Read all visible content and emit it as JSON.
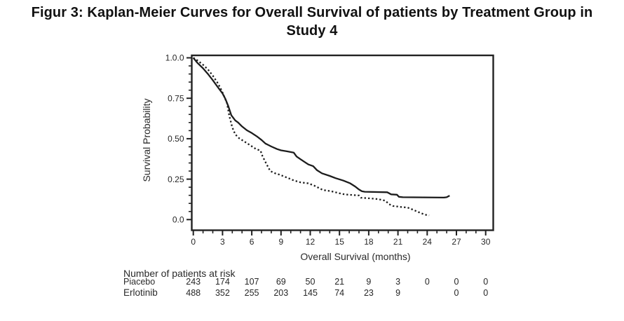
{
  "figure": {
    "title_line1": "Figur 3: Kaplan-Meier Curves for Overall Survival of patients by Treatment Group in",
    "title_line2": "Study 4"
  },
  "chart_data": {
    "type": "line",
    "subtype": "kaplan-meier-survival",
    "title": "Kaplan-Meier Curves for Overall Survival of patients by Treatment Group in Study 4",
    "xlabel": "Overall Survival (months)",
    "ylabel": "Survival Probability",
    "xlim": [
      0,
      31
    ],
    "ylim": [
      0,
      1.0
    ],
    "grid": false,
    "legend_position": "none",
    "x_ticks": {
      "values": [
        0,
        3,
        6,
        9,
        12,
        15,
        18,
        21,
        24,
        27,
        30
      ],
      "labels": [
        "0",
        "3",
        "6",
        "9",
        "12",
        "15",
        "18",
        "21",
        "24",
        "27",
        "30"
      ],
      "minor_step": 1
    },
    "y_ticks": {
      "values": [
        1.0,
        0.75,
        0.5,
        0.25,
        0.0
      ],
      "labels": [
        "1.0.0",
        "0.75",
        "0.50",
        "0.25",
        "0.0"
      ],
      "minor_step": 0.05
    },
    "series": [
      {
        "name": "Erlotinib",
        "line_style": "solid",
        "color": "#1c1c1c",
        "points": [
          [
            0,
            1.0
          ],
          [
            0.4,
            0.97
          ],
          [
            1,
            0.935
          ],
          [
            1.5,
            0.9
          ],
          [
            2,
            0.862
          ],
          [
            2.5,
            0.82
          ],
          [
            3,
            0.78
          ],
          [
            3.3,
            0.745
          ],
          [
            3.6,
            0.7
          ],
          [
            3.9,
            0.645
          ],
          [
            4.3,
            0.613
          ],
          [
            4.6,
            0.6
          ],
          [
            5,
            0.576
          ],
          [
            5.5,
            0.552
          ],
          [
            6,
            0.535
          ],
          [
            6.5,
            0.515
          ],
          [
            7,
            0.492
          ],
          [
            7.4,
            0.47
          ],
          [
            8,
            0.452
          ],
          [
            8.6,
            0.436
          ],
          [
            9,
            0.428
          ],
          [
            9.6,
            0.422
          ],
          [
            10.3,
            0.414
          ],
          [
            10.6,
            0.39
          ],
          [
            11,
            0.373
          ],
          [
            11.4,
            0.357
          ],
          [
            11.8,
            0.341
          ],
          [
            12.3,
            0.33
          ],
          [
            12.7,
            0.305
          ],
          [
            13.2,
            0.286
          ],
          [
            14,
            0.27
          ],
          [
            14.6,
            0.256
          ],
          [
            15.4,
            0.241
          ],
          [
            16.1,
            0.224
          ],
          [
            16.6,
            0.205
          ],
          [
            17,
            0.186
          ],
          [
            17.3,
            0.175
          ],
          [
            17.6,
            0.172
          ],
          [
            19.9,
            0.169
          ],
          [
            20.3,
            0.156
          ],
          [
            20.9,
            0.154
          ],
          [
            21.1,
            0.141
          ],
          [
            21.5,
            0.138
          ],
          [
            25.7,
            0.136
          ],
          [
            26.0,
            0.138
          ],
          [
            26.3,
            0.148
          ]
        ]
      },
      {
        "name": "Piacebo",
        "line_style": "dotted",
        "color": "#1c1c1c",
        "points": [
          [
            0,
            1.0
          ],
          [
            0.4,
            0.985
          ],
          [
            1,
            0.957
          ],
          [
            1.5,
            0.928
          ],
          [
            2,
            0.89
          ],
          [
            2.5,
            0.845
          ],
          [
            2.9,
            0.8
          ],
          [
            3.2,
            0.757
          ],
          [
            3.45,
            0.72
          ],
          [
            3.7,
            0.64
          ],
          [
            4.0,
            0.57
          ],
          [
            4.3,
            0.527
          ],
          [
            4.7,
            0.503
          ],
          [
            5.3,
            0.48
          ],
          [
            5.9,
            0.457
          ],
          [
            6.4,
            0.437
          ],
          [
            6.9,
            0.426
          ],
          [
            7.1,
            0.392
          ],
          [
            7.5,
            0.345
          ],
          [
            7.9,
            0.3
          ],
          [
            8.4,
            0.286
          ],
          [
            8.9,
            0.277
          ],
          [
            9.6,
            0.26
          ],
          [
            10.3,
            0.242
          ],
          [
            11,
            0.23
          ],
          [
            11.8,
            0.224
          ],
          [
            12.4,
            0.21
          ],
          [
            12.9,
            0.195
          ],
          [
            13.3,
            0.183
          ],
          [
            14.1,
            0.176
          ],
          [
            14.9,
            0.164
          ],
          [
            15.5,
            0.156
          ],
          [
            16.3,
            0.152
          ],
          [
            17,
            0.149
          ],
          [
            17.2,
            0.135
          ],
          [
            18.2,
            0.131
          ],
          [
            19,
            0.126
          ],
          [
            19.7,
            0.117
          ],
          [
            20.1,
            0.095
          ],
          [
            20.5,
            0.084
          ],
          [
            21.3,
            0.078
          ],
          [
            22,
            0.074
          ],
          [
            22.5,
            0.062
          ],
          [
            22.9,
            0.052
          ],
          [
            23.3,
            0.041
          ],
          [
            23.8,
            0.03
          ],
          [
            24.2,
            0.026
          ]
        ]
      }
    ]
  },
  "risk_table": {
    "header": "Number of patients at risk",
    "months": [
      0,
      3,
      6,
      9,
      12,
      15,
      18,
      21,
      24,
      27,
      30
    ],
    "rows": [
      {
        "label": "Piacebo",
        "counts": [
          "243",
          "174",
          "107",
          "69",
          "50",
          "21",
          "9",
          "3",
          "0",
          "0",
          "0"
        ]
      },
      {
        "label": "Erlotinib",
        "counts": [
          "488",
          "352",
          "255",
          "203",
          "145",
          "74",
          "23",
          "9",
          "",
          "0",
          "0"
        ]
      }
    ]
  }
}
